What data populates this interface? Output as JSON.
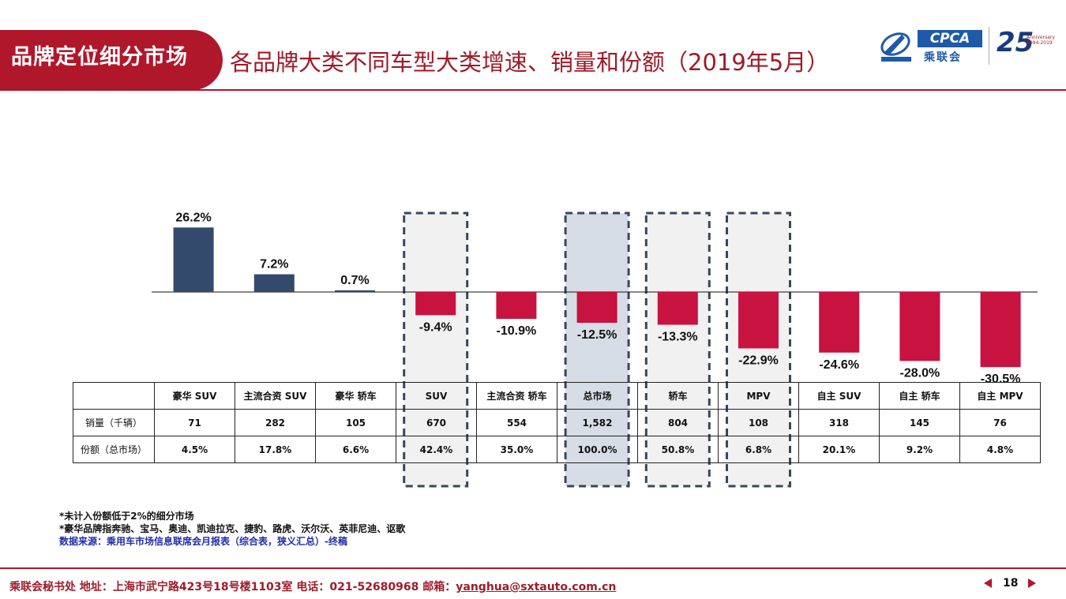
{
  "header": {
    "section_label": "品牌定位细分市场",
    "title": "各品牌大类不同车型大类增速、销量和份额（2019年5月）"
  },
  "logos": {
    "cpca_text": "CPCA",
    "cpca_sub": "乘联会",
    "anniv_number": "25",
    "anniv_text": "Anniversary 1994-2019"
  },
  "chart_data": {
    "type": "bar",
    "categories": [
      "豪华 SUV",
      "主流合资 SUV",
      "豪华 轿车",
      "SUV",
      "主流合资 轿车",
      "总市场",
      "轿车",
      "MPV",
      "自主 SUV",
      "自主 轿车",
      "自主 MPV"
    ],
    "values": [
      26.2,
      7.2,
      0.7,
      -9.4,
      -10.9,
      -12.5,
      -13.3,
      -22.9,
      -24.6,
      -28.0,
      -30.5
    ],
    "value_labels": [
      "26.2%",
      "7.2%",
      "0.7%",
      "-9.4%",
      "-10.9%",
      "-12.5%",
      "-13.3%",
      "-22.9%",
      "-24.6%",
      "-28.0%",
      "-30.5%"
    ],
    "ylim": [
      -32,
      34
    ],
    "colors": {
      "positive": "#344a6c",
      "negative": "#c8123f"
    },
    "highlighted": [
      "SUV",
      "总市场",
      "轿车",
      "MPV"
    ],
    "grid": false
  },
  "table": {
    "rows": [
      {
        "label": "销量（千辆）",
        "values": [
          "71",
          "282",
          "105",
          "670",
          "554",
          "1,582",
          "804",
          "108",
          "318",
          "145",
          "76"
        ]
      },
      {
        "label": "份额（总市场）",
        "values": [
          "4.5%",
          "17.8%",
          "6.6%",
          "42.4%",
          "35.0%",
          "100.0%",
          "50.8%",
          "6.8%",
          "20.1%",
          "9.2%",
          "4.8%"
        ]
      }
    ]
  },
  "notes": [
    "*未计入份额低于2%的细分市场",
    "*豪华品牌指奔驰、宝马、奥迪、凯迪拉克、捷豹、路虎、沃尔沃、英菲尼迪、讴歌",
    "数据来源：乘用车市场信息联席会月报表（综合表，狭义汇总）-终稿"
  ],
  "footer": {
    "contact": "乘联会秘书处   地址：上海市武宁路423号18号楼1103室  电话：021-52680968   邮箱：",
    "email": "yanghua@sxtauto.com.cn",
    "page": "18"
  }
}
